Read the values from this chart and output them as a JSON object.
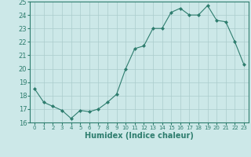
{
  "x": [
    0,
    1,
    2,
    3,
    4,
    5,
    6,
    7,
    8,
    9,
    10,
    11,
    12,
    13,
    14,
    15,
    16,
    17,
    18,
    19,
    20,
    21,
    22,
    23
  ],
  "y": [
    18.5,
    17.5,
    17.2,
    16.9,
    16.3,
    16.9,
    16.8,
    17.0,
    17.5,
    18.1,
    20.0,
    21.5,
    21.7,
    23.0,
    23.0,
    24.2,
    24.5,
    24.0,
    24.0,
    24.7,
    23.6,
    23.5,
    22.0,
    20.3
  ],
  "line_color": "#2e7d6e",
  "marker": "D",
  "marker_size": 2.0,
  "bg_color": "#cce8e8",
  "grid_color": "#aacccc",
  "xlabel": "Humidex (Indice chaleur)",
  "xlim": [
    -0.5,
    23.5
  ],
  "ylim": [
    16,
    25
  ],
  "yticks": [
    16,
    17,
    18,
    19,
    20,
    21,
    22,
    23,
    24,
    25
  ],
  "xtick_labels": [
    "0",
    "1",
    "2",
    "3",
    "4",
    "5",
    "6",
    "7",
    "8",
    "9",
    "10",
    "11",
    "12",
    "13",
    "14",
    "15",
    "16",
    "17",
    "18",
    "19",
    "20",
    "21",
    "22",
    "23"
  ],
  "xlabel_fontsize": 7,
  "ytick_fontsize": 6,
  "xtick_fontsize": 5
}
